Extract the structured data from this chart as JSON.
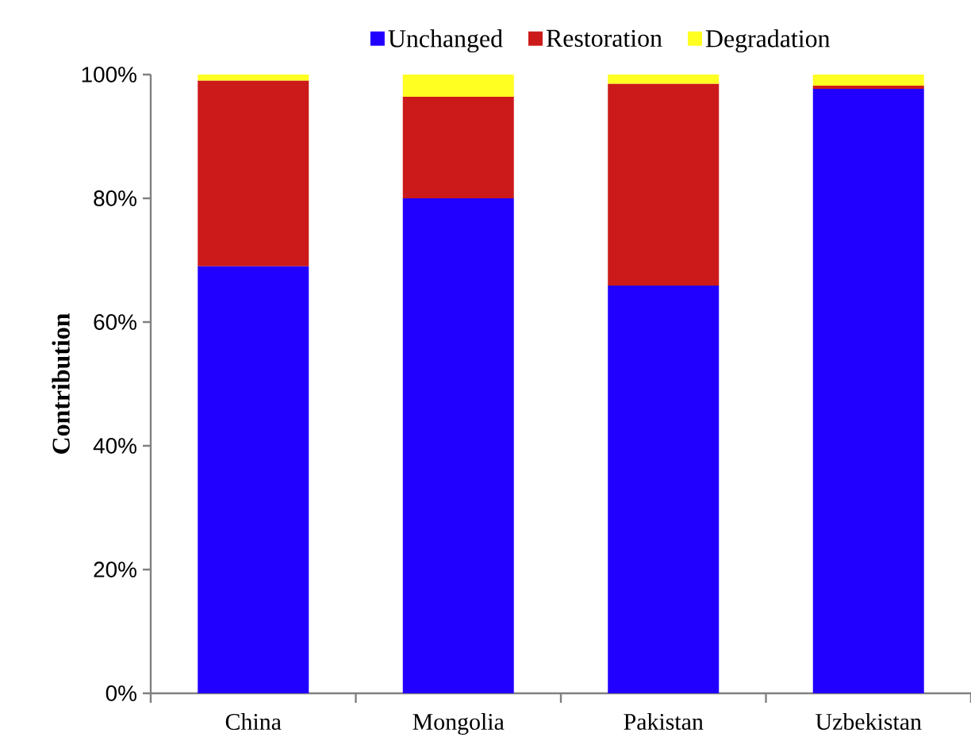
{
  "chart_data": {
    "type": "bar",
    "stacked": true,
    "ylabel": "Contribution",
    "categories": [
      "China",
      "Mongolia",
      "Pakistan",
      "Uzbekistan"
    ],
    "series": [
      {
        "name": "Unchanged",
        "color": "#2200ff",
        "values": [
          69.0,
          80.0,
          65.9,
          97.7
        ]
      },
      {
        "name": "Restoration",
        "color": "#cc1a1a",
        "values": [
          30.0,
          16.4,
          32.6,
          0.5
        ]
      },
      {
        "name": "Degradation",
        "color": "#ffff22",
        "values": [
          1.0,
          3.6,
          1.5,
          1.8
        ]
      }
    ],
    "ylim": [
      0,
      100
    ],
    "yticks": [
      {
        "value": 0,
        "label": "0%"
      },
      {
        "value": 20,
        "label": "20%"
      },
      {
        "value": 40,
        "label": "40%"
      },
      {
        "value": 60,
        "label": "60%"
      },
      {
        "value": 80,
        "label": "80%"
      },
      {
        "value": 100,
        "label": "100%"
      }
    ],
    "grid": false,
    "legend": "top"
  }
}
